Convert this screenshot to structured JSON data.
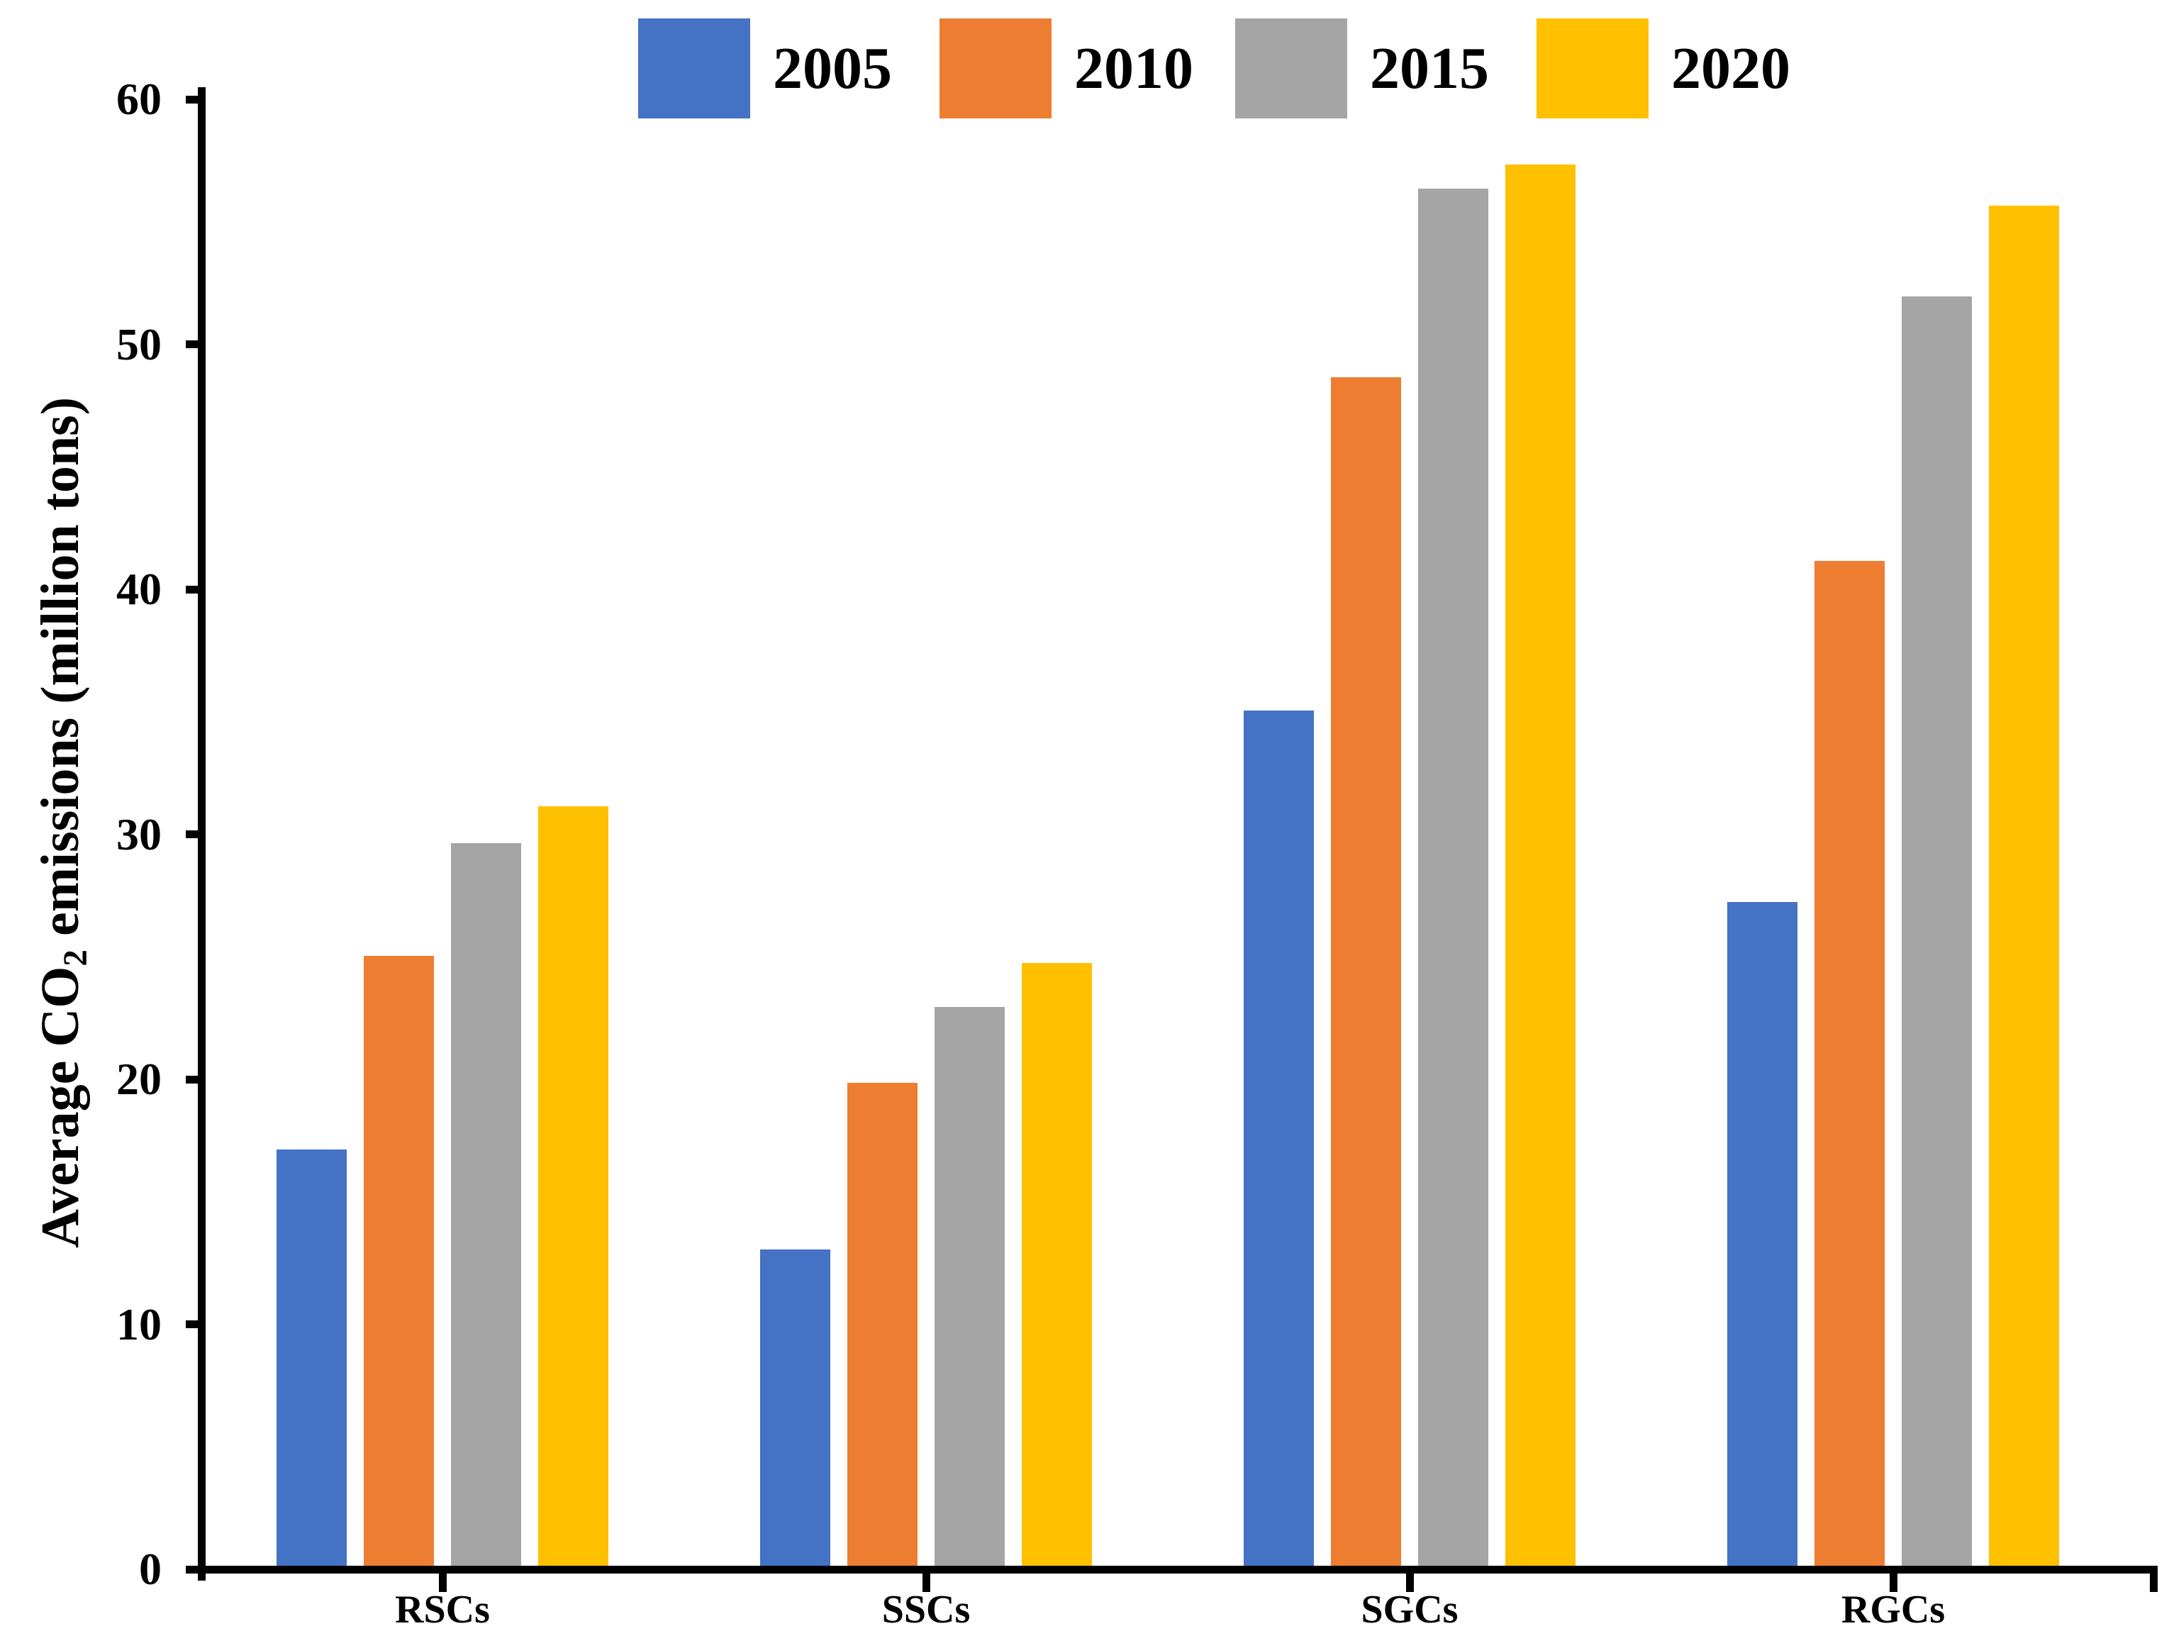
{
  "chart_data": {
    "type": "bar",
    "title": "",
    "categories": [
      "RSCs",
      "SSCs",
      "SGCs",
      "RGCs"
    ],
    "series": [
      {
        "name": "2005",
        "color": "#4472C4",
        "values": [
          17.0,
          12.9,
          34.9,
          27.1
        ]
      },
      {
        "name": "2010",
        "color": "#ED7D31",
        "values": [
          24.9,
          19.7,
          48.5,
          41.0
        ]
      },
      {
        "name": "2015",
        "color": "#A5A5A5",
        "values": [
          29.5,
          22.8,
          56.2,
          51.8
        ]
      },
      {
        "name": "2020",
        "color": "#FFC000",
        "values": [
          31.0,
          24.6,
          57.2,
          55.5
        ]
      }
    ],
    "ylabel": {
      "prefix": "Average CO",
      "sub": "2",
      "suffix": " emissions (million tons)"
    },
    "xlabel": "",
    "ylim": [
      0,
      60
    ],
    "yticks": [
      0,
      10,
      20,
      30,
      40,
      50,
      60
    ],
    "grid": false,
    "legend_position": "top",
    "axis_color": "#000000",
    "text_color": "#000000",
    "background": "#FFFFFF"
  }
}
